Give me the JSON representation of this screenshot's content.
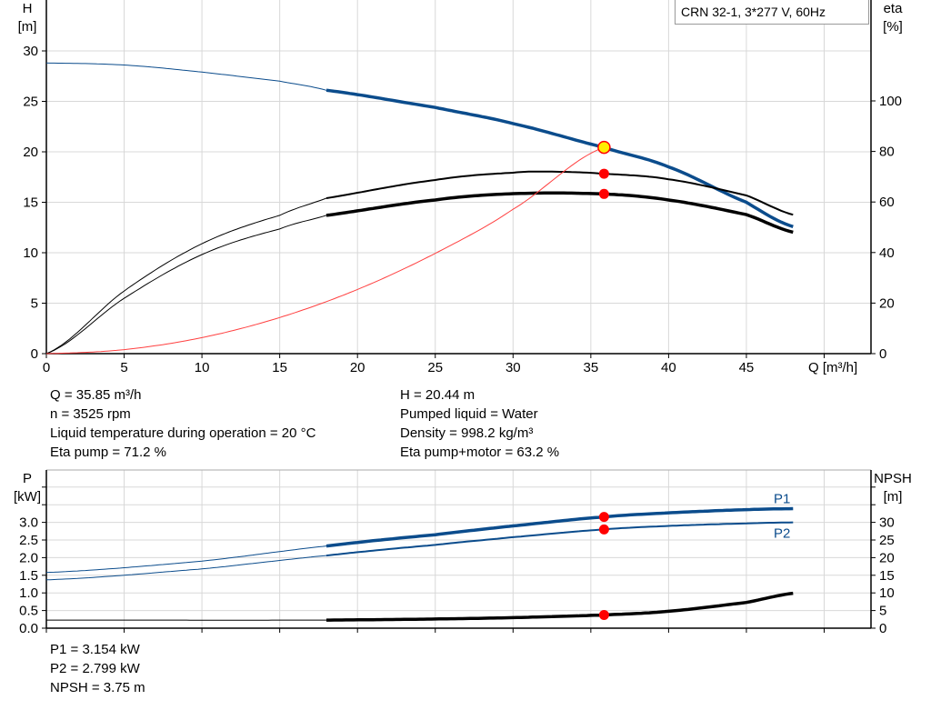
{
  "title_box": "CRN 32-1, 3*277 V, 60Hz",
  "colors": {
    "head": "#0b4c8c",
    "eta": "#000000",
    "system": "#ff4040",
    "point": "#ff0000",
    "point_highlight": "#ffee00",
    "grid": "#d8d8d8"
  },
  "chart_data": [
    {
      "type": "line",
      "title": "",
      "xlabel": "Q [m³/h]",
      "ylabel_left": [
        "H",
        "[m]"
      ],
      "ylabel_right": [
        "eta",
        "[%]"
      ],
      "xlim": [
        0,
        53
      ],
      "ylim_left": [
        0,
        35
      ],
      "ylim_right": [
        0,
        125
      ],
      "x_ticks": [
        "0",
        "5",
        "10",
        "15",
        "20",
        "25",
        "30",
        "35",
        "40",
        "45"
      ],
      "y_left_ticks": [
        "0",
        "5",
        "10",
        "15",
        "20",
        "25",
        "30"
      ],
      "y_right_ticks": [
        "0",
        "20",
        "40",
        "60",
        "80",
        "100"
      ],
      "grid": true,
      "series": [
        {
          "id": "head",
          "axis": "left",
          "x": [
            0,
            5,
            10,
            15,
            18,
            25,
            30,
            35.85,
            40,
            45,
            48.2
          ],
          "y": [
            28.8,
            28.6,
            27.9,
            27.0,
            26.1,
            24.4,
            22.8,
            20.44,
            18.5,
            15.0,
            12.5
          ]
        },
        {
          "id": "eta_pump",
          "axis": "right",
          "x": [
            0,
            5,
            10,
            15,
            18,
            25,
            30,
            32.5,
            35.85,
            40,
            45,
            48.2
          ],
          "y": [
            0,
            24.8,
            43.5,
            54.7,
            61.5,
            68.7,
            71.6,
            72.0,
            71.2,
            69.0,
            62.6,
            54.7
          ]
        },
        {
          "id": "eta_pump_motor",
          "axis": "right",
          "x": [
            0,
            5,
            10,
            15,
            18,
            25,
            30,
            35.85,
            40,
            45,
            48.2
          ],
          "y": [
            0,
            21.9,
            39.2,
            49.3,
            54.7,
            60.8,
            63.3,
            63.2,
            60.8,
            55.0,
            47.8
          ]
        },
        {
          "id": "system",
          "axis": "left",
          "x": [
            0,
            5,
            10,
            15,
            20,
            25,
            30,
            35.85
          ],
          "y": [
            0,
            0.4,
            1.59,
            3.58,
            6.36,
            9.94,
            14.31,
            20.44
          ]
        }
      ],
      "operating_points": [
        {
          "axis": "left",
          "x": 35.85,
          "y": 20.44,
          "highlight": true
        },
        {
          "axis": "right",
          "x": 35.85,
          "y": 71.2
        },
        {
          "axis": "right",
          "x": 35.85,
          "y": 63.2
        }
      ],
      "bold_from_x": 18
    },
    {
      "type": "line",
      "title": "",
      "xlabel": "",
      "ylabel_left": [
        "P",
        "[kW]"
      ],
      "ylabel_right": [
        "NPSH",
        "[m]"
      ],
      "xlim": [
        0,
        53
      ],
      "ylim_left": [
        0,
        4.5
      ],
      "ylim_right": [
        0,
        45
      ],
      "y_left_ticks": [
        "0.0",
        "0.5",
        "1.0",
        "1.5",
        "2.0",
        "2.5",
        "3.0"
      ],
      "y_right_ticks": [
        "0",
        "5",
        "10",
        "15",
        "20",
        "25",
        "30"
      ],
      "grid": true,
      "series": [
        {
          "id": "p1",
          "name": "P1",
          "axis": "left",
          "x": [
            0,
            10,
            18,
            25,
            30,
            35.85,
            40,
            45,
            48.2
          ],
          "y": [
            1.58,
            1.9,
            2.33,
            2.65,
            2.9,
            3.154,
            3.27,
            3.36,
            3.39
          ]
        },
        {
          "id": "p2",
          "name": "P2",
          "axis": "left",
          "x": [
            0,
            10,
            18,
            25,
            30,
            35.85,
            40,
            45,
            48.2
          ],
          "y": [
            1.37,
            1.68,
            2.06,
            2.36,
            2.58,
            2.799,
            2.9,
            2.97,
            3.0
          ]
        },
        {
          "id": "npsh",
          "axis": "right",
          "x": [
            0,
            18,
            25,
            30,
            35.85,
            40,
            45,
            48.2
          ],
          "y": [
            2.3,
            2.3,
            2.6,
            3.0,
            3.75,
            4.8,
            7.3,
            10.0
          ]
        }
      ],
      "operating_points": [
        {
          "axis": "left",
          "x": 35.85,
          "y": 3.154
        },
        {
          "axis": "left",
          "x": 35.85,
          "y": 2.799
        },
        {
          "axis": "right",
          "x": 35.85,
          "y": 3.75
        }
      ],
      "bold_from_x": 18
    }
  ],
  "info_top": {
    "left": [
      "Q = 35.85 m³/h",
      "n = 3525 rpm",
      "Liquid temperature during operation = 20 °C",
      "Eta pump = 71.2 %"
    ],
    "right": [
      "H = 20.44 m",
      "Pumped liquid = Water",
      "Density = 998.2 kg/m³",
      "Eta pump+motor = 63.2 %"
    ]
  },
  "info_bottom": [
    "P1 = 3.154 kW",
    "P2 = 2.799 kW",
    "NPSH = 3.75 m"
  ]
}
